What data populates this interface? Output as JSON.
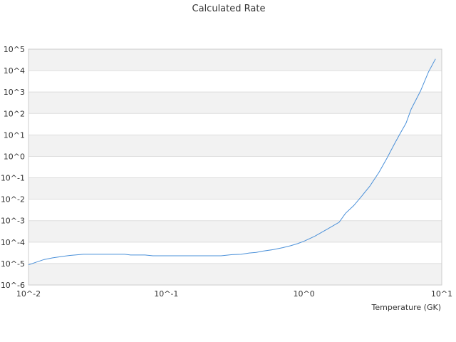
{
  "chart_data": {
    "type": "line",
    "title": "Calculated Rate",
    "xlabel": "Temperature (GK)",
    "ylabel": "",
    "x_scale": "log",
    "y_scale": "log",
    "xlim": [
      0.01,
      10
    ],
    "ylim": [
      1e-06,
      100000
    ],
    "x_ticks": [
      {
        "value": 0.01,
        "label": "10^-2"
      },
      {
        "value": 0.1,
        "label": "10^-1"
      },
      {
        "value": 1,
        "label": "10^0"
      },
      {
        "value": 10,
        "label": "10^1"
      }
    ],
    "y_ticks": [
      {
        "value": 1e-06,
        "label": "10^-6"
      },
      {
        "value": 1e-05,
        "label": "10^-5"
      },
      {
        "value": 0.0001,
        "label": "10^-4"
      },
      {
        "value": 0.001,
        "label": "10^-3"
      },
      {
        "value": 0.01,
        "label": "10^-2"
      },
      {
        "value": 0.1,
        "label": "10^-1"
      },
      {
        "value": 1,
        "label": "10^0"
      },
      {
        "value": 10,
        "label": "10^1"
      },
      {
        "value": 100,
        "label": "10^2"
      },
      {
        "value": 1000,
        "label": "10^3"
      },
      {
        "value": 10000,
        "label": "10^4"
      },
      {
        "value": 100000,
        "label": "10^5"
      }
    ],
    "grid": "alternating horizontal bands",
    "line_color": "#4a90d9",
    "band_color": "#f2f2f2",
    "series": [
      {
        "x": [
          0.01,
          0.0115,
          0.013,
          0.015,
          0.018,
          0.02,
          0.025,
          0.03,
          0.04,
          0.05,
          0.055,
          0.07,
          0.08,
          0.1,
          0.15,
          0.2,
          0.25,
          0.3,
          0.35,
          0.4,
          0.45,
          0.5,
          0.6,
          0.7,
          0.8,
          0.9,
          1.0,
          1.2,
          1.5,
          1.8,
          2.0,
          2.3,
          2.6,
          3.0,
          3.5,
          4.0,
          4.5,
          5.0,
          5.5,
          6.0,
          7.0,
          8.0,
          9.0
        ],
        "y": [
          8.7e-06,
          1.18e-05,
          1.55e-05,
          1.85e-05,
          2.2e-05,
          2.4e-05,
          2.7e-05,
          2.7e-05,
          2.7e-05,
          2.7e-05,
          2.5e-05,
          2.5e-05,
          2.3e-05,
          2.3e-05,
          2.3e-05,
          2.3e-05,
          2.3e-05,
          2.6e-05,
          2.7e-05,
          3.1e-05,
          3.3e-05,
          3.8e-05,
          4.5e-05,
          5.5e-05,
          6.8e-05,
          8.5e-05,
          0.00011,
          0.00019,
          0.00043,
          0.00085,
          0.0022,
          0.0051,
          0.013,
          0.04,
          0.18,
          0.82,
          3.5,
          12,
          35,
          160,
          1100,
          8500,
          35000
        ]
      }
    ]
  }
}
